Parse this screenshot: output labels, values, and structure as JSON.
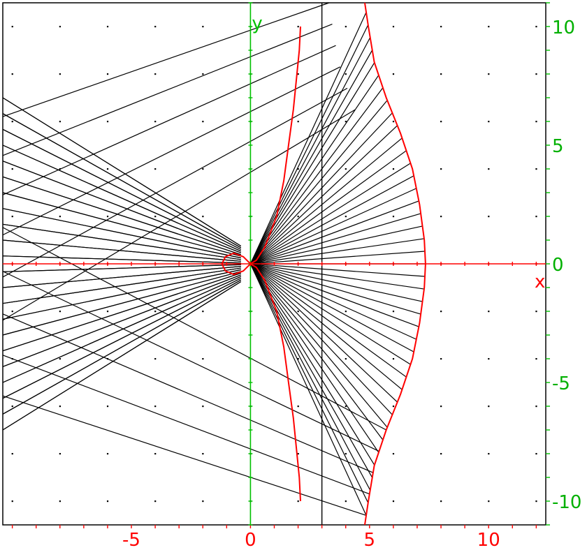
{
  "chart_data": {
    "type": "diagram",
    "x_range": [
      -10.4,
      12.4
    ],
    "y_range": [
      -11.0,
      11.0
    ],
    "x_axis_label": "x",
    "y_axis_label": "y",
    "x_tick_labels": [
      {
        "value": -5,
        "label": "-5"
      },
      {
        "value": 0,
        "label": "0"
      },
      {
        "value": 5,
        "label": "5"
      },
      {
        "value": 10,
        "label": "10"
      }
    ],
    "y_tick_labels": [
      {
        "value": 10,
        "label": "10"
      },
      {
        "value": 5,
        "label": "5"
      },
      {
        "value": 0,
        "label": "0"
      },
      {
        "value": -5,
        "label": "-5"
      },
      {
        "value": -10,
        "label": "-10"
      }
    ],
    "grid_dots": {
      "step": 2
    },
    "vertical_line_x": 3,
    "focus": [
      0,
      0
    ],
    "right_curve": [
      [
        4.8,
        11
      ],
      [
        4.95,
        10
      ],
      [
        5.2,
        8.5
      ],
      [
        5.7,
        7
      ],
      [
        6.3,
        5.5
      ],
      [
        6.8,
        4
      ],
      [
        7.1,
        2.5
      ],
      [
        7.3,
        1
      ],
      [
        7.35,
        0
      ],
      [
        7.3,
        -1
      ],
      [
        7.1,
        -2.5
      ],
      [
        6.8,
        -4
      ],
      [
        6.3,
        -5.5
      ],
      [
        5.7,
        -7
      ],
      [
        5.2,
        -8.5
      ],
      [
        4.95,
        -10
      ],
      [
        4.8,
        -11
      ]
    ],
    "inner_curve": [
      [
        2.1,
        10
      ],
      [
        2.05,
        9
      ],
      [
        1.95,
        8
      ],
      [
        1.8,
        6.5
      ],
      [
        1.6,
        5
      ],
      [
        1.4,
        3.5
      ],
      [
        1.1,
        2
      ],
      [
        0.6,
        0.7
      ],
      [
        0.25,
        0.15
      ],
      [
        0,
        0
      ],
      [
        0.25,
        -0.15
      ],
      [
        0.6,
        -0.7
      ],
      [
        1.1,
        -2
      ],
      [
        1.4,
        -3.5
      ],
      [
        1.6,
        -5
      ],
      [
        1.8,
        -6.5
      ],
      [
        1.95,
        -8
      ],
      [
        2.05,
        -9
      ],
      [
        2.1,
        -10
      ]
    ],
    "loop_curve": [
      [
        0,
        0
      ],
      [
        -0.3,
        0.3
      ],
      [
        -0.7,
        0.45
      ],
      [
        -1.05,
        0.3
      ],
      [
        -1.2,
        0
      ],
      [
        -1.05,
        -0.3
      ],
      [
        -0.7,
        -0.45
      ],
      [
        -0.3,
        -0.3
      ],
      [
        0,
        0
      ]
    ],
    "reflected_ray_limits": {
      "upper_end": [
        -10.4,
        7.0
      ],
      "lower_end": [
        -10.4,
        -7.0
      ]
    },
    "colors": {
      "background": "#ffffff",
      "axes": "#ff0000",
      "y_axis": "#00c000",
      "curves": "#ff0000",
      "lines": "#000000",
      "dots": "#000000",
      "x_tick_text": "#ff0000",
      "y_tick_text": "#00b000"
    }
  }
}
